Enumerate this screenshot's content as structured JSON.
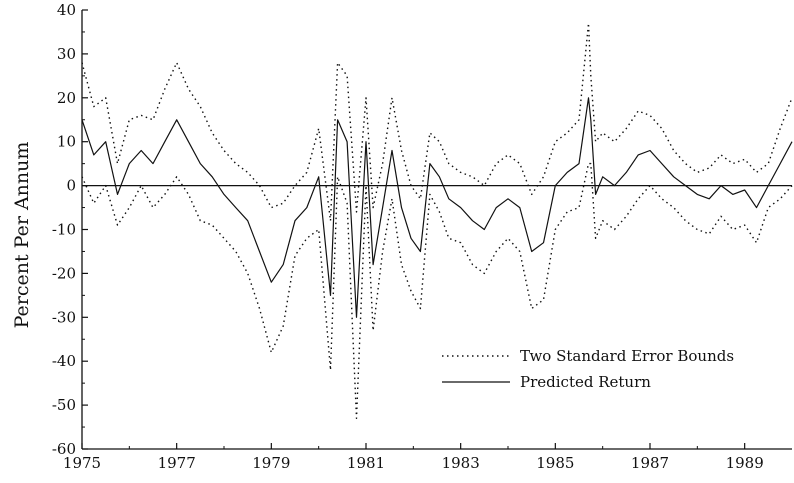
{
  "chart_data": {
    "type": "line",
    "title": "",
    "xlabel": "",
    "ylabel": "Percent Per Annum",
    "xlim": [
      1975,
      1990
    ],
    "ylim": [
      -60,
      40
    ],
    "x_ticks": [
      "1975",
      "1977",
      "1979",
      "1981",
      "1983",
      "1985",
      "1987",
      "1989"
    ],
    "y_ticks": [
      "40",
      "30",
      "20",
      "10",
      "0",
      "-10",
      "-20",
      "-30",
      "-40",
      "-50",
      "-60"
    ],
    "grid": false,
    "zero_line": true,
    "legend_position": "lower-right",
    "legend": [
      {
        "label": "Two Standard Error Bounds",
        "style": "dotted"
      },
      {
        "label": "Predicted Return",
        "style": "solid"
      }
    ],
    "x": [
      1975.0,
      1975.25,
      1975.5,
      1975.75,
      1976.0,
      1976.25,
      1976.5,
      1976.75,
      1977.0,
      1977.25,
      1977.5,
      1977.75,
      1978.0,
      1978.25,
      1978.5,
      1978.75,
      1979.0,
      1979.25,
      1979.5,
      1979.75,
      1980.0,
      1980.25,
      1980.4,
      1980.6,
      1980.8,
      1981.0,
      1981.15,
      1981.35,
      1981.55,
      1981.75,
      1981.95,
      1982.15,
      1982.35,
      1982.55,
      1982.75,
      1983.0,
      1983.25,
      1983.5,
      1983.75,
      1984.0,
      1984.25,
      1984.5,
      1984.75,
      1985.0,
      1985.25,
      1985.5,
      1985.7,
      1985.75,
      1985.85,
      1986.0,
      1986.25,
      1986.5,
      1986.75,
      1987.0,
      1987.25,
      1987.5,
      1987.75,
      1988.0,
      1988.25,
      1988.5,
      1988.75,
      1989.0,
      1989.25,
      1989.5,
      1989.75,
      1990.0
    ],
    "series": [
      {
        "name": "Predicted Return",
        "style": "solid",
        "values": [
          15,
          7,
          10,
          -2,
          5,
          8,
          5,
          10,
          15,
          10,
          5,
          2,
          -2,
          -5,
          -8,
          -15,
          -22,
          -18,
          -8,
          -5,
          2,
          -25,
          15,
          10,
          -30,
          10,
          -18,
          -5,
          8,
          -5,
          -12,
          -15,
          5,
          2,
          -3,
          -5,
          -8,
          -10,
          -5,
          -3,
          -5,
          -15,
          -13,
          0,
          3,
          5,
          20,
          15,
          -2,
          2,
          0,
          3,
          7,
          8,
          5,
          2,
          0,
          -2,
          -3,
          0,
          -2,
          -1,
          -5,
          0,
          5,
          10
        ]
      },
      {
        "name": "Two Standard Error Bounds",
        "style": "dotted",
        "values": [
          28,
          18,
          20,
          5,
          15,
          16,
          15,
          22,
          28,
          22,
          18,
          12,
          8,
          5,
          3,
          0,
          -5,
          -4,
          0,
          3,
          13,
          -8,
          28,
          25,
          -6,
          20,
          -5,
          5,
          20,
          8,
          0,
          -3,
          12,
          10,
          5,
          3,
          2,
          0,
          5,
          7,
          5,
          -2,
          2,
          10,
          12,
          15,
          37,
          25,
          10,
          12,
          10,
          13,
          17,
          16,
          13,
          8,
          5,
          3,
          4,
          7,
          5,
          6,
          3,
          5,
          13,
          20
        ]
      },
      {
        "name": "Two Standard Error Bounds",
        "style": "dotted",
        "values": [
          2,
          -4,
          0,
          -9,
          -5,
          0,
          -5,
          -2,
          2,
          -2,
          -8,
          -9,
          -12,
          -15,
          -20,
          -28,
          -38,
          -32,
          -16,
          -12,
          -10,
          -42,
          2,
          -4,
          -53,
          0,
          -33,
          -15,
          -3,
          -18,
          -24,
          -28,
          -2,
          -6,
          -12,
          -13,
          -18,
          -20,
          -15,
          -12,
          -15,
          -28,
          -26,
          -10,
          -6,
          -5,
          5,
          5,
          -12,
          -8,
          -10,
          -7,
          -3,
          0,
          -3,
          -5,
          -8,
          -10,
          -11,
          -7,
          -10,
          -9,
          -13,
          -5,
          -3,
          0
        ]
      }
    ]
  }
}
